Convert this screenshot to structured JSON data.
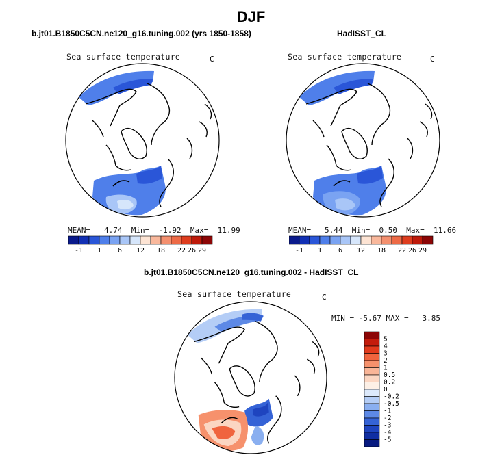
{
  "figure_title": "DJF",
  "panels": [
    {
      "case_title": "b.jt01.B1850C5CN.ne120_g16.tuning.002 (yrs 1850-1858)",
      "variable": "Sea surface temperature",
      "units": "C",
      "stats": {
        "mean_label": "MEAN=",
        "mean": "4.74",
        "min_label": "Min=",
        "min": "-1.92",
        "max_label": "Max=",
        "max": "11.99"
      },
      "colorbar": {
        "colors": [
          "#0a1a8c",
          "#1230b4",
          "#2a56d8",
          "#4f7fea",
          "#7aa3f2",
          "#a9c6f7",
          "#d6e6fb",
          "#fde4d4",
          "#f9b89c",
          "#f4906f",
          "#ed6a46",
          "#de3d1e",
          "#be1a0a",
          "#8c0606"
        ],
        "labels": [
          "-1",
          "1",
          "6",
          "12",
          "18",
          "22",
          "26",
          "29"
        ]
      }
    },
    {
      "case_title": "HadISST_CL",
      "variable": "Sea surface temperature",
      "units": "C",
      "stats": {
        "mean_label": "MEAN=",
        "mean": "5.44",
        "min_label": "Min=",
        "min": "0.50",
        "max_label": "Max=",
        "max": "11.66"
      },
      "colorbar": {
        "colors": [
          "#0a1a8c",
          "#1230b4",
          "#2a56d8",
          "#4f7fea",
          "#7aa3f2",
          "#a9c6f7",
          "#d6e6fb",
          "#fde4d4",
          "#f9b89c",
          "#f4906f",
          "#ed6a46",
          "#de3d1e",
          "#be1a0a",
          "#8c0606"
        ],
        "labels": [
          "-1",
          "1",
          "6",
          "12",
          "18",
          "22",
          "26",
          "29"
        ]
      }
    }
  ],
  "difference": {
    "case_title": "b.jt01.B1850C5CN.ne120_g16.tuning.002 - HadISST_CL",
    "variable": "Sea surface temperature",
    "units": "C",
    "stats": {
      "min_label": "MIN =",
      "min": "-5.67",
      "max_label": "MAX =",
      "max": "3.85"
    },
    "colorbar": {
      "colors": [
        "#8c0606",
        "#c41c0c",
        "#e23a1c",
        "#f0643e",
        "#f6916c",
        "#f9b597",
        "#fbd6c2",
        "#fdf0e6",
        "#dce9fb",
        "#b4cdf6",
        "#8aaff0",
        "#5d89e6",
        "#3563d6",
        "#1e44bf",
        "#102ea2",
        "#071a80"
      ],
      "labels": [
        "5",
        "4",
        "3",
        "2",
        "1",
        "0.5",
        "0.2",
        "0",
        "-0.2",
        "-0.5",
        "-1",
        "-2",
        "-3",
        "-4",
        "-5"
      ]
    }
  },
  "chart_data": {
    "type": "map",
    "projection": "north polar stereographic",
    "season": "DJF",
    "panels": [
      {
        "name": "b.jt01.B1850C5CN.ne120_g16.tuning.002 (yrs 1850-1858)",
        "variable": "Sea surface temperature",
        "units": "C",
        "mean": 4.74,
        "min": -1.92,
        "max": 11.99,
        "contour_levels": [
          -1,
          1,
          6,
          12,
          18,
          22,
          26,
          29
        ]
      },
      {
        "name": "HadISST_CL",
        "variable": "Sea surface temperature",
        "units": "C",
        "mean": 5.44,
        "min": 0.5,
        "max": 11.66,
        "contour_levels": [
          -1,
          1,
          6,
          12,
          18,
          22,
          26,
          29
        ]
      },
      {
        "name": "b.jt01.B1850C5CN.ne120_g16.tuning.002 - HadISST_CL",
        "variable": "Sea surface temperature",
        "units": "C",
        "min": -5.67,
        "max": 3.85,
        "contour_levels": [
          -5,
          -4,
          -3,
          -2,
          -1,
          -0.5,
          -0.2,
          0,
          0.2,
          0.5,
          1,
          2,
          3,
          4,
          5
        ]
      }
    ]
  }
}
